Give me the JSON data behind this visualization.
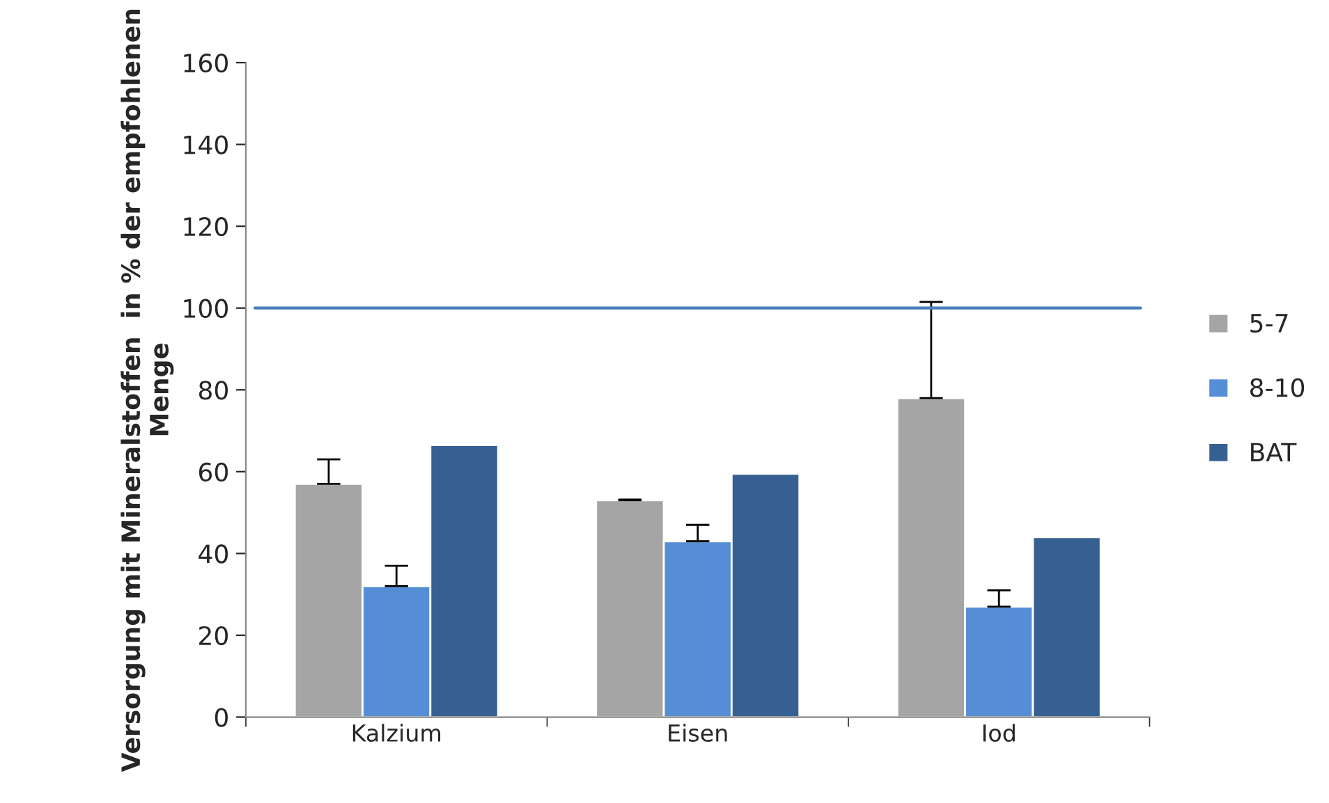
{
  "chart_data": {
    "type": "bar",
    "ylabel": "Versorgung mit Mineralstoffen  in % der empfohlenen Menge",
    "categories": [
      "Kalzium",
      "Eisen",
      "Iod"
    ],
    "series": [
      {
        "name": "5-7",
        "color": "#a5a5a5",
        "values": [
          57,
          53,
          78
        ],
        "errors": [
          [
            57,
            63
          ],
          [
            53,
            53.2
          ],
          [
            78,
            101.5
          ]
        ]
      },
      {
        "name": "8-10",
        "color": "#558ed5",
        "values": [
          32,
          43,
          27
        ],
        "errors": [
          [
            32,
            37
          ],
          [
            43,
            47
          ],
          [
            27,
            31
          ]
        ]
      },
      {
        "name": "BAT",
        "color": "#376092",
        "values": [
          66.5,
          59.5,
          44
        ]
      }
    ],
    "ylim": [
      0,
      160
    ],
    "yticks": [
      0,
      20,
      40,
      60,
      80,
      100,
      120,
      140,
      160
    ],
    "ref_lines": [
      {
        "axis": "y",
        "value": 100,
        "color": "#4a7ebb"
      }
    ],
    "legend": "right",
    "grid": false
  }
}
